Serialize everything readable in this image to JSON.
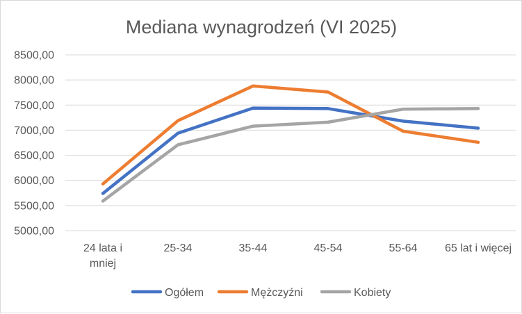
{
  "chart_data": {
    "type": "line",
    "title": "Mediana wynagrodzeń (VI 2025)",
    "xlabel": "",
    "ylabel": "",
    "categories": [
      "24 lata i mniej",
      "25-34",
      "35-44",
      "45-54",
      "55-64",
      "65 lat i więcej"
    ],
    "category_lines": [
      [
        "24 lata i",
        "mniej"
      ],
      [
        "25-34"
      ],
      [
        "35-44"
      ],
      [
        "45-54"
      ],
      [
        "55-64"
      ],
      [
        "65 lat i więcej"
      ]
    ],
    "ylim": [
      5000,
      8500
    ],
    "yticks": [
      5000,
      5500,
      6000,
      6500,
      7000,
      7500,
      8000,
      8500
    ],
    "ytick_labels": [
      "5000,00",
      "5500,00",
      "6000,00",
      "6500,00",
      "7000,00",
      "7500,00",
      "8000,00",
      "8500,00"
    ],
    "grid": true,
    "legend_position": "bottom",
    "series": [
      {
        "name": "Ogółem",
        "color": "#4472c4",
        "values": [
          5740,
          6940,
          7440,
          7430,
          7180,
          7040
        ]
      },
      {
        "name": "Mężczyźni",
        "color": "#ed7d31",
        "values": [
          5930,
          7190,
          7880,
          7760,
          6980,
          6760
        ]
      },
      {
        "name": "Kobiety",
        "color": "#a5a5a5",
        "values": [
          5590,
          6710,
          7080,
          7160,
          7420,
          7430
        ]
      }
    ]
  }
}
